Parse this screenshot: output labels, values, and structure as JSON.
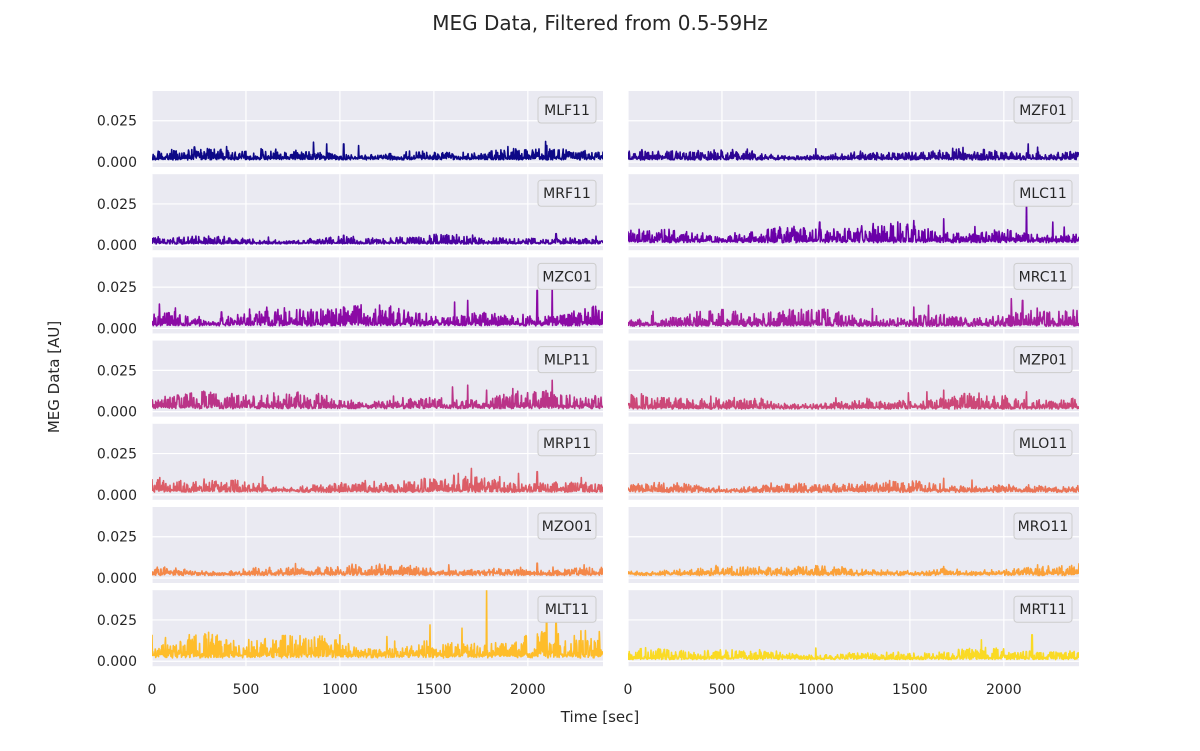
{
  "chart_data": {
    "type": "line",
    "title": "MEG Data, Filtered from 0.5-59Hz",
    "xlabel": "Time [sec]",
    "ylabel": "MEG Data [AU]",
    "xlim": [
      0,
      2400
    ],
    "ylim": [
      -0.003,
      0.043
    ],
    "xticks": [
      0,
      500,
      1000,
      1500,
      2000
    ],
    "yticks": [
      0.0,
      0.025
    ],
    "ytick_labels": [
      "0.000",
      "0.025"
    ],
    "grid": true,
    "legend_placement": "upper-right",
    "background": "#eaeaf2",
    "layout": {
      "rows": 7,
      "cols": 2
    },
    "series": [
      {
        "name": "MLF11",
        "col": 0,
        "row": 0,
        "color": "#0d0887",
        "base": 0.0025,
        "noise": 0.0022,
        "bursts": [
          [
            860,
            0.012
          ],
          [
            930,
            0.011
          ],
          [
            1020,
            0.011
          ],
          [
            1100,
            0.01
          ],
          [
            2100,
            0.01
          ]
        ]
      },
      {
        "name": "MZF01",
        "col": 1,
        "row": 0,
        "color": "#2c0594",
        "base": 0.0025,
        "noise": 0.002,
        "bursts": [
          [
            1000,
            0.008
          ],
          [
            2130,
            0.011
          ],
          [
            2180,
            0.009
          ]
        ]
      },
      {
        "name": "MRF11",
        "col": 0,
        "row": 1,
        "color": "#4a02a0",
        "base": 0.0015,
        "noise": 0.0017,
        "bursts": [
          [
            2150,
            0.007
          ],
          [
            1020,
            0.006
          ],
          [
            620,
            0.005
          ]
        ]
      },
      {
        "name": "MLC11",
        "col": 1,
        "row": 1,
        "color": "#6a00a8",
        "base": 0.003,
        "noise": 0.0034,
        "bursts": [
          [
            2120,
            0.029
          ],
          [
            1020,
            0.014
          ],
          [
            1520,
            0.015
          ],
          [
            1680,
            0.016
          ],
          [
            2260,
            0.014
          ]
        ]
      },
      {
        "name": "MZC01",
        "col": 0,
        "row": 2,
        "color": "#8b0aa5",
        "base": 0.003,
        "noise": 0.004,
        "bursts": [
          [
            2050,
            0.023
          ],
          [
            2130,
            0.026
          ],
          [
            1680,
            0.017
          ],
          [
            1610,
            0.016
          ],
          [
            1020,
            0.013
          ],
          [
            370,
            0.01
          ]
        ]
      },
      {
        "name": "MRC11",
        "col": 1,
        "row": 2,
        "color": "#a41e9e",
        "base": 0.0025,
        "noise": 0.0032,
        "bursts": [
          [
            2040,
            0.018
          ],
          [
            2100,
            0.017
          ],
          [
            1600,
            0.014
          ],
          [
            1520,
            0.013
          ],
          [
            1300,
            0.012
          ],
          [
            950,
            0.01
          ]
        ]
      },
      {
        "name": "MLP11",
        "col": 0,
        "row": 3,
        "color": "#ba3388",
        "base": 0.0035,
        "noise": 0.003,
        "bursts": [
          [
            2130,
            0.019
          ],
          [
            1680,
            0.016
          ],
          [
            1600,
            0.015
          ],
          [
            1920,
            0.014
          ],
          [
            1780,
            0.013
          ]
        ]
      },
      {
        "name": "MZP01",
        "col": 1,
        "row": 3,
        "color": "#cc4778",
        "base": 0.003,
        "noise": 0.0025,
        "bursts": [
          [
            1680,
            0.013
          ],
          [
            1590,
            0.012
          ],
          [
            1790,
            0.011
          ],
          [
            2120,
            0.012
          ]
        ]
      },
      {
        "name": "MRP11",
        "col": 0,
        "row": 4,
        "color": "#dc5d67",
        "base": 0.003,
        "noise": 0.0028,
        "bursts": [
          [
            1700,
            0.016
          ],
          [
            1630,
            0.013
          ],
          [
            1950,
            0.013
          ],
          [
            2050,
            0.014
          ],
          [
            1850,
            0.011
          ]
        ]
      },
      {
        "name": "MLO11",
        "col": 1,
        "row": 4,
        "color": "#ea7457",
        "base": 0.003,
        "noise": 0.002,
        "bursts": [
          [
            1680,
            0.01
          ],
          [
            1830,
            0.009
          ],
          [
            1550,
            0.008
          ]
        ]
      },
      {
        "name": "MZO01",
        "col": 0,
        "row": 5,
        "color": "#f48849",
        "base": 0.003,
        "noise": 0.0018,
        "bursts": [
          [
            2050,
            0.009
          ],
          [
            1580,
            0.008
          ],
          [
            2300,
            0.008
          ]
        ]
      },
      {
        "name": "MRO11",
        "col": 1,
        "row": 5,
        "color": "#fba139",
        "base": 0.003,
        "noise": 0.0016,
        "bursts": [
          [
            2180,
            0.008
          ],
          [
            2400,
            0.009
          ],
          [
            1680,
            0.007
          ]
        ]
      },
      {
        "name": "MLT11",
        "col": 0,
        "row": 6,
        "color": "#febd2a",
        "base": 0.004,
        "noise": 0.0045,
        "bursts": [
          [
            1780,
            0.043
          ],
          [
            2100,
            0.025
          ],
          [
            2150,
            0.023
          ],
          [
            1480,
            0.022
          ],
          [
            1650,
            0.02
          ],
          [
            0,
            0.016
          ],
          [
            340,
            0.015
          ],
          [
            1000,
            0.016
          ],
          [
            1250,
            0.015
          ],
          [
            2380,
            0.018
          ]
        ]
      },
      {
        "name": "MRT11",
        "col": 1,
        "row": 6,
        "color": "#fada24",
        "base": 0.002,
        "noise": 0.002,
        "bursts": [
          [
            2150,
            0.016
          ],
          [
            1880,
            0.013
          ],
          [
            1000,
            0.008
          ],
          [
            700,
            0.007
          ]
        ]
      }
    ]
  }
}
